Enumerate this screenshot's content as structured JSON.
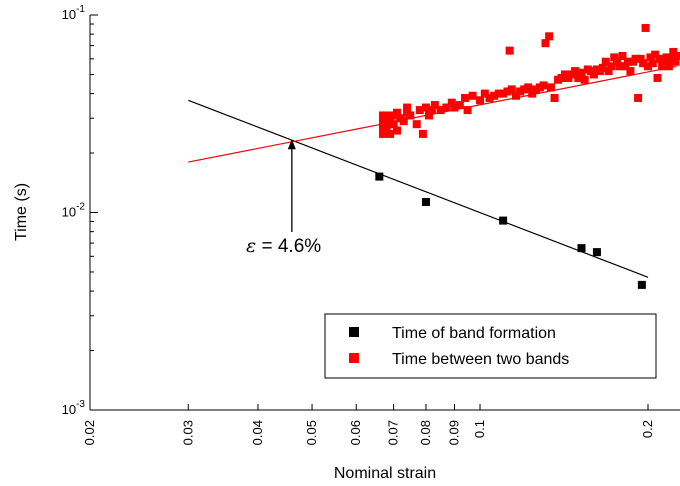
{
  "chart_data": {
    "type": "scatter",
    "xlabel": "Nominal strain",
    "ylabel": "Time (s)",
    "x_scale": "log",
    "y_scale": "log",
    "xlim": [
      0.02,
      0.23
    ],
    "ylim": [
      0.001,
      0.1
    ],
    "x_ticks": [
      {
        "value": 0.02,
        "label": "0.02"
      },
      {
        "value": 0.03,
        "label": "0.03"
      },
      {
        "value": 0.04,
        "label": "0.04"
      },
      {
        "value": 0.05,
        "label": "0.05"
      },
      {
        "value": 0.06,
        "label": "0.06"
      },
      {
        "value": 0.07,
        "label": "0.07"
      },
      {
        "value": 0.08,
        "label": "0.08"
      },
      {
        "value": 0.09,
        "label": "0.09"
      },
      {
        "value": 0.1,
        "label": "0.1"
      },
      {
        "value": 0.2,
        "label": "0.2"
      }
    ],
    "y_ticks": [
      {
        "value": 0.001,
        "base": "10",
        "exp": "-3"
      },
      {
        "value": 0.01,
        "base": "10",
        "exp": "-2"
      },
      {
        "value": 0.1,
        "base": "10",
        "exp": "-1"
      }
    ],
    "grid": false,
    "legend_position": "bottom-right",
    "series": [
      {
        "name": "Time of band formation",
        "color": "#000000",
        "marker": "square",
        "points": [
          [
            0.066,
            0.0152
          ],
          [
            0.08,
            0.0113
          ],
          [
            0.11,
            0.0091
          ],
          [
            0.152,
            0.0066
          ],
          [
            0.162,
            0.0063
          ],
          [
            0.195,
            0.0043
          ]
        ],
        "fit": [
          [
            0.03,
            0.037
          ],
          [
            0.2,
            0.0047
          ]
        ]
      },
      {
        "name": "Time between two bands",
        "color": "#ff0000",
        "marker": "square",
        "points": [
          [
            0.067,
            0.025
          ],
          [
            0.067,
            0.027
          ],
          [
            0.067,
            0.029
          ],
          [
            0.067,
            0.031
          ],
          [
            0.068,
            0.026
          ],
          [
            0.068,
            0.028
          ],
          [
            0.068,
            0.031
          ],
          [
            0.069,
            0.025
          ],
          [
            0.069,
            0.03
          ],
          [
            0.07,
            0.028
          ],
          [
            0.07,
            0.031
          ],
          [
            0.071,
            0.026
          ],
          [
            0.071,
            0.032
          ],
          [
            0.072,
            0.03
          ],
          [
            0.073,
            0.029
          ],
          [
            0.074,
            0.032
          ],
          [
            0.074,
            0.034
          ],
          [
            0.075,
            0.031
          ],
          [
            0.077,
            0.028
          ],
          [
            0.078,
            0.033
          ],
          [
            0.079,
            0.025
          ],
          [
            0.08,
            0.034
          ],
          [
            0.081,
            0.031
          ],
          [
            0.082,
            0.033
          ],
          [
            0.083,
            0.035
          ],
          [
            0.085,
            0.033
          ],
          [
            0.087,
            0.034
          ],
          [
            0.089,
            0.036
          ],
          [
            0.09,
            0.034
          ],
          [
            0.092,
            0.035
          ],
          [
            0.094,
            0.038
          ],
          [
            0.095,
            0.033
          ],
          [
            0.097,
            0.039
          ],
          [
            0.1,
            0.037
          ],
          [
            0.102,
            0.04
          ],
          [
            0.104,
            0.038
          ],
          [
            0.106,
            0.039
          ],
          [
            0.108,
            0.04
          ],
          [
            0.11,
            0.04
          ],
          [
            0.112,
            0.041
          ],
          [
            0.113,
            0.066
          ],
          [
            0.114,
            0.042
          ],
          [
            0.116,
            0.039
          ],
          [
            0.118,
            0.041
          ],
          [
            0.12,
            0.042
          ],
          [
            0.122,
            0.043
          ],
          [
            0.124,
            0.04
          ],
          [
            0.126,
            0.042
          ],
          [
            0.128,
            0.043
          ],
          [
            0.13,
            0.044
          ],
          [
            0.131,
            0.072
          ],
          [
            0.133,
            0.078
          ],
          [
            0.134,
            0.043
          ],
          [
            0.136,
            0.038
          ],
          [
            0.138,
            0.047
          ],
          [
            0.14,
            0.048
          ],
          [
            0.142,
            0.05
          ],
          [
            0.144,
            0.048
          ],
          [
            0.146,
            0.05
          ],
          [
            0.148,
            0.052
          ],
          [
            0.15,
            0.048
          ],
          [
            0.152,
            0.051
          ],
          [
            0.154,
            0.047
          ],
          [
            0.156,
            0.053
          ],
          [
            0.158,
            0.052
          ],
          [
            0.16,
            0.05
          ],
          [
            0.162,
            0.053
          ],
          [
            0.164,
            0.052
          ],
          [
            0.166,
            0.054
          ],
          [
            0.168,
            0.058
          ],
          [
            0.17,
            0.052
          ],
          [
            0.172,
            0.055
          ],
          [
            0.174,
            0.061
          ],
          [
            0.176,
            0.058
          ],
          [
            0.178,
            0.055
          ],
          [
            0.18,
            0.062
          ],
          [
            0.182,
            0.055
          ],
          [
            0.184,
            0.058
          ],
          [
            0.186,
            0.052
          ],
          [
            0.188,
            0.058
          ],
          [
            0.19,
            0.06
          ],
          [
            0.192,
            0.038
          ],
          [
            0.194,
            0.06
          ],
          [
            0.196,
            0.057
          ],
          [
            0.198,
            0.086
          ],
          [
            0.2,
            0.055
          ],
          [
            0.202,
            0.061
          ],
          [
            0.204,
            0.057
          ],
          [
            0.206,
            0.063
          ],
          [
            0.208,
            0.048
          ],
          [
            0.21,
            0.06
          ],
          [
            0.212,
            0.055
          ],
          [
            0.214,
            0.059
          ],
          [
            0.216,
            0.061
          ],
          [
            0.218,
            0.055
          ],
          [
            0.22,
            0.06
          ],
          [
            0.222,
            0.065
          ],
          [
            0.224,
            0.058
          ],
          [
            0.226,
            0.062
          ]
        ],
        "fit": [
          [
            0.03,
            0.018
          ],
          [
            0.225,
            0.055
          ]
        ]
      }
    ],
    "annotations": [
      {
        "label_symbol": "ε",
        "label_text": " = 4.6%",
        "x": 0.046,
        "y": 0.0235
      }
    ]
  }
}
